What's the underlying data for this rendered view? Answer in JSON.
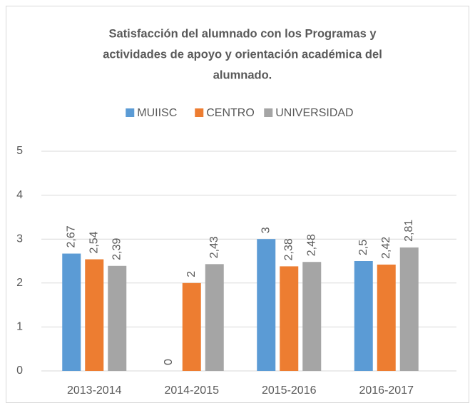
{
  "chart_data": {
    "type": "bar",
    "title": [
      "Satisfacción del alumnado con los Programas y",
      "actividades de apoyo y orientación académica del",
      "alumnado."
    ],
    "categories": [
      "2013-2014",
      "2014-2015",
      "2015-2016",
      "2016-2017"
    ],
    "series": [
      {
        "name": "MUIISC",
        "color": "#5b9bd5",
        "values": [
          2.67,
          0,
          3,
          2.5
        ],
        "value_labels": [
          "2,67",
          "0",
          "3",
          "2,5"
        ]
      },
      {
        "name": "CENTRO",
        "color": "#ed7d31",
        "values": [
          2.54,
          2,
          2.38,
          2.42
        ],
        "value_labels": [
          "2,54",
          "2",
          "2,38",
          "2,42"
        ]
      },
      {
        "name": "UNIVERSIDAD",
        "color": "#a5a5a5",
        "values": [
          2.39,
          2.43,
          2.48,
          2.81
        ],
        "value_labels": [
          "2,39",
          "2,43",
          "2,48",
          "2,81"
        ]
      }
    ],
    "ylim": [
      0,
      5
    ],
    "yticks": [
      0,
      1,
      2,
      3,
      4,
      5
    ],
    "grid": true,
    "legend": "top"
  }
}
